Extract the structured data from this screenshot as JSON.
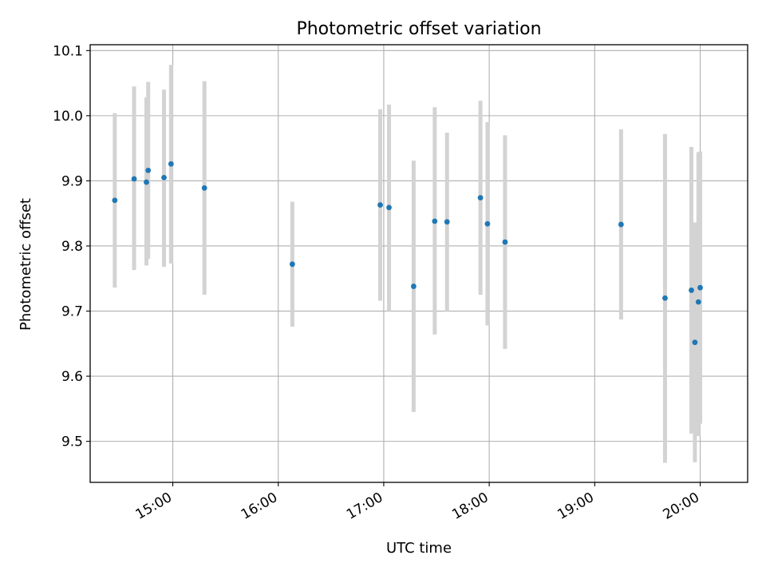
{
  "chart_data": {
    "type": "scatter",
    "title": "Photometric offset variation",
    "xlabel": "UTC time",
    "ylabel": "Photometric offset",
    "xlim": [
      "14:13",
      "20:27"
    ],
    "ylim": [
      9.437,
      10.109
    ],
    "xticks": [
      "15:00",
      "16:00",
      "17:00",
      "18:00",
      "19:00",
      "20:00"
    ],
    "yticks": [
      "9.5",
      "9.6",
      "9.7",
      "9.8",
      "9.9",
      "10.0",
      "10.1"
    ],
    "grid": true,
    "error_bars": true,
    "points": [
      {
        "t": "14:27",
        "y": 9.87,
        "ylo": 9.736,
        "yhi": 10.004
      },
      {
        "t": "14:38",
        "y": 9.903,
        "ylo": 9.763,
        "yhi": 10.045
      },
      {
        "t": "14:45",
        "y": 9.898,
        "ylo": 9.77,
        "yhi": 10.028
      },
      {
        "t": "14:46",
        "y": 9.916,
        "ylo": 9.78,
        "yhi": 10.052
      },
      {
        "t": "14:55",
        "y": 9.905,
        "ylo": 9.768,
        "yhi": 10.04
      },
      {
        "t": "14:59",
        "y": 9.926,
        "ylo": 9.773,
        "yhi": 10.078
      },
      {
        "t": "15:18",
        "y": 9.889,
        "ylo": 9.725,
        "yhi": 10.053
      },
      {
        "t": "16:08",
        "y": 9.772,
        "ylo": 9.676,
        "yhi": 9.868
      },
      {
        "t": "16:58",
        "y": 9.863,
        "ylo": 9.716,
        "yhi": 10.01
      },
      {
        "t": "17:03",
        "y": 9.859,
        "ylo": 9.7,
        "yhi": 10.017
      },
      {
        "t": "17:17",
        "y": 9.738,
        "ylo": 9.545,
        "yhi": 9.931
      },
      {
        "t": "17:29",
        "y": 9.838,
        "ylo": 9.664,
        "yhi": 10.013
      },
      {
        "t": "17:36",
        "y": 9.837,
        "ylo": 9.7,
        "yhi": 9.974
      },
      {
        "t": "17:55",
        "y": 9.874,
        "ylo": 9.725,
        "yhi": 10.023
      },
      {
        "t": "17:59",
        "y": 9.834,
        "ylo": 9.678,
        "yhi": 9.99
      },
      {
        "t": "18:09",
        "y": 9.806,
        "ylo": 9.642,
        "yhi": 9.97
      },
      {
        "t": "19:15",
        "y": 9.833,
        "ylo": 9.687,
        "yhi": 9.979
      },
      {
        "t": "19:40",
        "y": 9.72,
        "ylo": 9.467,
        "yhi": 9.972
      },
      {
        "t": "19:55",
        "y": 9.732,
        "ylo": 9.512,
        "yhi": 9.952
      },
      {
        "t": "19:57",
        "y": 9.652,
        "ylo": 9.468,
        "yhi": 9.836
      },
      {
        "t": "19:59",
        "y": 9.714,
        "ylo": 9.508,
        "yhi": 9.944
      },
      {
        "t": "20:00",
        "y": 9.736,
        "ylo": 9.527,
        "yhi": 9.945
      }
    ],
    "colors": {
      "marker": "#1f77b4",
      "errorbar": "#d3d3d3",
      "grid": "#b0b0b0",
      "axes": "#000000"
    }
  }
}
